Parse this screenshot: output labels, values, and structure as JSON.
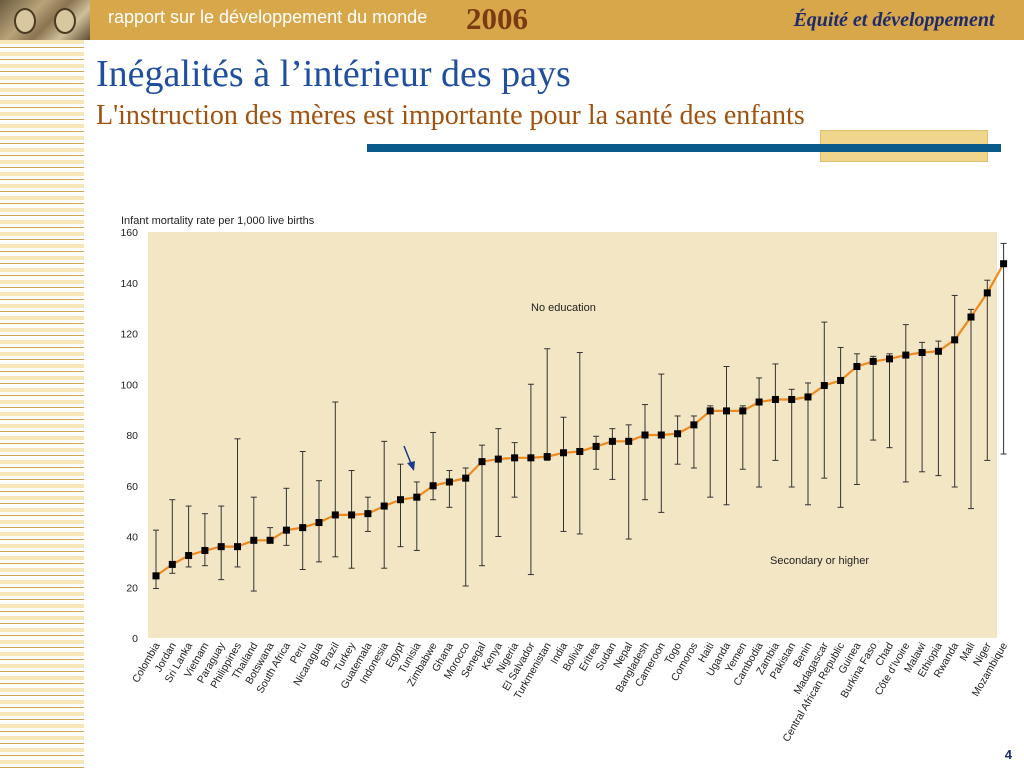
{
  "header": {
    "rapport": "rapport sur le développement du monde",
    "year": "2006",
    "subtitle": "Équité et développement"
  },
  "slide": {
    "title": "Inégalités à l’intérieur des pays",
    "subtitle": "L'instruction des mères est importante pour la santé des enfants",
    "page_number": "4"
  },
  "colors": {
    "header_bar": "#d7a74a",
    "title": "#1f4f9e",
    "subtitle": "#a0520f",
    "rule": "#0a5a8c",
    "plot_bg": "#f2e6c4",
    "line": "#ee8a1e",
    "marker": "#000000"
  },
  "chart_data": {
    "type": "line",
    "title": "",
    "ylabel": "Infant mortality rate per 1,000 live births",
    "xlabel": "",
    "ylim": [
      0,
      160
    ],
    "yticks": [
      0,
      20,
      40,
      60,
      80,
      100,
      120,
      140,
      160
    ],
    "grid": false,
    "annotations": [
      "No education",
      "Secondary or higher"
    ],
    "categories": [
      "Colombia",
      "Jordan",
      "Sri Lanka",
      "Vietnam",
      "Paraguay",
      "Philippines",
      "Thailand",
      "Botswana",
      "South Africa",
      "Peru",
      "Nicaragua",
      "Brazil",
      "Turkey",
      "Guatemala",
      "Indonesia",
      "Egypt",
      "Tunisia",
      "Zimbabwe",
      "Ghana",
      "Morocco",
      "Senegal",
      "Kenya",
      "Nigeria",
      "El Salvador",
      "Turkmenistan",
      "India",
      "Bolivia",
      "Eritrea",
      "Sudan",
      "Nepal",
      "Bangladesh",
      "Cameroon",
      "Togo",
      "Comoros",
      "Haiti",
      "Uganda",
      "Yemen",
      "Cambodia",
      "Zambia",
      "Pakistan",
      "Benin",
      "Madagascar",
      "Central African Republic",
      "Guinea",
      "Burkina Faso",
      "Chad",
      "Côte d’Ivoire",
      "Malawi",
      "Ethiopia",
      "Rwanda",
      "Mali",
      "Niger",
      "Mozambique"
    ],
    "series": [
      {
        "type": "line",
        "values": [
          24.5,
          29,
          32.5,
          34.5,
          36,
          36,
          38.5,
          38.5,
          42.5,
          43.5,
          45.5,
          48.5,
          48.5,
          49,
          52,
          54.5,
          55.5,
          60,
          61.5,
          63,
          69.5,
          70.5,
          71,
          71,
          71.5,
          73,
          73.5,
          75.5,
          77.5,
          77.5,
          80,
          80,
          80.5,
          84,
          89.5,
          89.5,
          89.5,
          93,
          94,
          94,
          95,
          99.5,
          101.5,
          107,
          109,
          110,
          111.5,
          112.5,
          113,
          117.5,
          126.5,
          136,
          147.5
        ]
      },
      {
        "type": "range",
        "high": [
          42.5,
          54.5,
          52,
          49,
          52,
          78.5,
          55.5,
          43.5,
          59,
          73.5,
          62,
          93,
          66,
          55.5,
          77.5,
          68.5,
          61.5,
          81,
          66,
          67,
          76,
          82.5,
          77,
          100,
          114,
          87,
          112.5,
          79.5,
          82.5,
          84,
          92,
          104,
          87.5,
          87.5,
          91.5,
          107,
          91.5,
          102.5,
          108,
          98,
          100.5,
          124.5,
          114.5,
          112,
          111,
          112,
          123.5,
          116.5,
          117,
          135,
          129.5,
          141,
          155.5
        ],
        "low": [
          19.5,
          25.5,
          28,
          28.5,
          23,
          28,
          18.5,
          38,
          36.5,
          27,
          30,
          32,
          27.5,
          42,
          27.5,
          36,
          34.5,
          54.5,
          51.5,
          20.5,
          28.5,
          40,
          55.5,
          25,
          70,
          42,
          41,
          66.5,
          62.5,
          39,
          54.5,
          49.5,
          68.5,
          67,
          55.5,
          52.5,
          66.5,
          59.5,
          70,
          59.5,
          52.5,
          63,
          51.5,
          60.5,
          78,
          75,
          61.5,
          65.5,
          64,
          59.5,
          51,
          70,
          72.5
        ]
      }
    ]
  }
}
